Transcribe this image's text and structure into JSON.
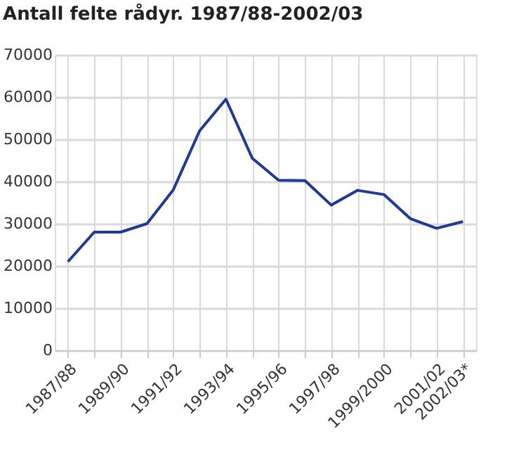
{
  "chart_data": {
    "type": "line",
    "title": "Antall felte rådyr. 1987/88-2002/03",
    "categories": [
      "1987/88",
      null,
      "1989/90",
      null,
      "1991/92",
      null,
      "1993/94",
      null,
      "1995/96",
      null,
      "1997/98",
      null,
      "1999/2000",
      null,
      "2001/02",
      "2002/03*"
    ],
    "series": [
      {
        "color": "#1f3a93",
        "values": [
          21000,
          28000,
          28000,
          30000,
          38000,
          52000,
          59500,
          45500,
          40300,
          40200,
          34400,
          37900,
          36900,
          31200,
          28900,
          30500
        ]
      }
    ],
    "ylim": [
      0,
      70000
    ],
    "yticks": [
      0,
      10000,
      20000,
      30000,
      40000,
      50000,
      60000,
      70000
    ],
    "grid": true,
    "legend": false,
    "marker": "none",
    "line_style": "solid"
  }
}
